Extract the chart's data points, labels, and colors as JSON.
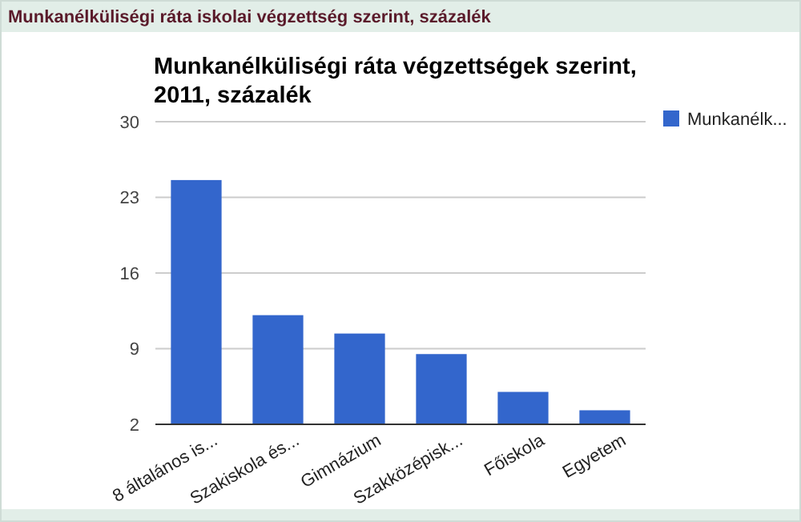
{
  "chart_data": {
    "type": "bar",
    "title": "Munkanélküliségi ráta végzettségek szerint, 2011, százalék",
    "annotations": [
      "Munkanélküliségi ráta iskolai végzettség szerint, százalék"
    ],
    "categories": [
      "8 általános is...",
      "Szakiskola és...",
      "Gimnázium",
      "Szakközépisk...",
      "Főiskola",
      "Egyetem"
    ],
    "series": [
      {
        "name": "Munkanélk...",
        "color": "#3366cc",
        "values": [
          24.6,
          12.1,
          10.4,
          8.5,
          5.0,
          3.3
        ]
      }
    ],
    "ylim": [
      2,
      30
    ],
    "yticks": [
      2,
      9,
      16,
      23,
      30
    ],
    "grid": "y",
    "legend": "right"
  }
}
